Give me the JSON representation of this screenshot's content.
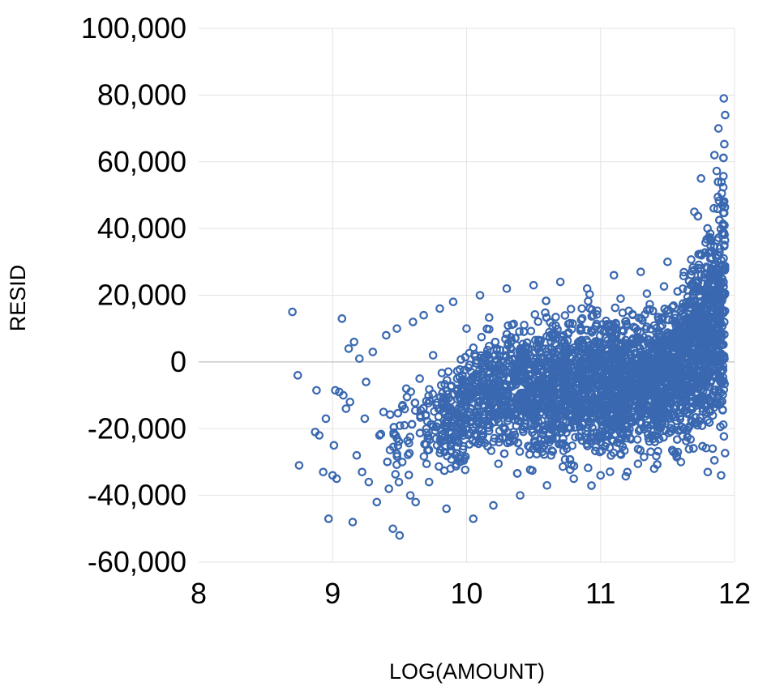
{
  "chart_data": {
    "type": "scatter",
    "xlabel": "LOG(AMOUNT)",
    "ylabel": "RESID",
    "xlim": [
      8,
      12
    ],
    "ylim": [
      -60000,
      100000
    ],
    "x_ticks": [
      8,
      9,
      10,
      11,
      12
    ],
    "x_tick_labels": [
      "8",
      "9",
      "10",
      "11",
      "12"
    ],
    "y_ticks": [
      -60000,
      -40000,
      -20000,
      0,
      20000,
      40000,
      60000,
      80000,
      100000
    ],
    "y_tick_labels": [
      "-60,000",
      "-40,000",
      "-20,000",
      "0",
      "20,000",
      "40,000",
      "60,000",
      "80,000",
      "100,000"
    ],
    "grid": "vertical and horizontal",
    "legend": "none",
    "series": [
      {
        "marker": "open-circle",
        "color": "#3a68b0",
        "x": [
          8.7,
          8.74,
          8.75,
          8.87,
          8.88,
          8.9,
          8.93,
          8.95,
          8.97,
          9.0,
          9.01,
          9.02,
          9.03,
          9.05,
          9.07,
          9.08,
          9.1,
          9.12,
          9.13,
          9.15,
          9.16,
          9.18,
          9.2,
          9.22,
          9.24,
          9.25,
          9.27,
          9.3,
          9.33,
          9.35,
          9.38,
          9.4,
          9.42,
          9.45,
          9.48,
          9.5,
          9.52,
          9.55,
          9.58,
          9.6,
          9.62,
          9.65,
          9.68,
          9.7,
          9.72,
          9.75,
          9.78,
          9.8,
          9.85,
          9.9,
          9.95,
          10.0,
          10.05,
          10.1,
          10.2,
          10.3,
          10.4,
          10.5,
          10.6,
          10.7,
          10.8,
          10.9,
          11.0,
          11.1,
          11.2,
          11.3,
          11.4,
          11.5,
          11.6,
          11.7,
          11.75,
          11.8,
          11.85,
          11.88,
          11.9,
          11.92,
          11.93
        ],
        "y": [
          15000,
          -4000,
          -31000,
          -21000,
          -8500,
          -22000,
          -33000,
          -17000,
          -47000,
          -34000,
          -25000,
          -8500,
          -35000,
          -9000,
          13000,
          -10000,
          -14000,
          4000,
          -12000,
          -48000,
          6000,
          -28000,
          1000,
          -33000,
          -17000,
          -6000,
          -36000,
          3000,
          -42000,
          -22000,
          -15000,
          8000,
          -38000,
          -50000,
          10000,
          -52000,
          -30000,
          -8000,
          -40000,
          12000,
          -42000,
          -5000,
          14000,
          -20000,
          -36000,
          2000,
          -25000,
          16000,
          -44000,
          18000,
          -30000,
          10000,
          -47000,
          20000,
          -43000,
          22000,
          -40000,
          23000,
          -37000,
          24000,
          -35000,
          22000,
          -34000,
          26000,
          -33000,
          27000,
          -32000,
          30000,
          -30000,
          45000,
          55000,
          -33000,
          62000,
          70000,
          -34000,
          79000,
          74000
        ]
      }
    ]
  }
}
